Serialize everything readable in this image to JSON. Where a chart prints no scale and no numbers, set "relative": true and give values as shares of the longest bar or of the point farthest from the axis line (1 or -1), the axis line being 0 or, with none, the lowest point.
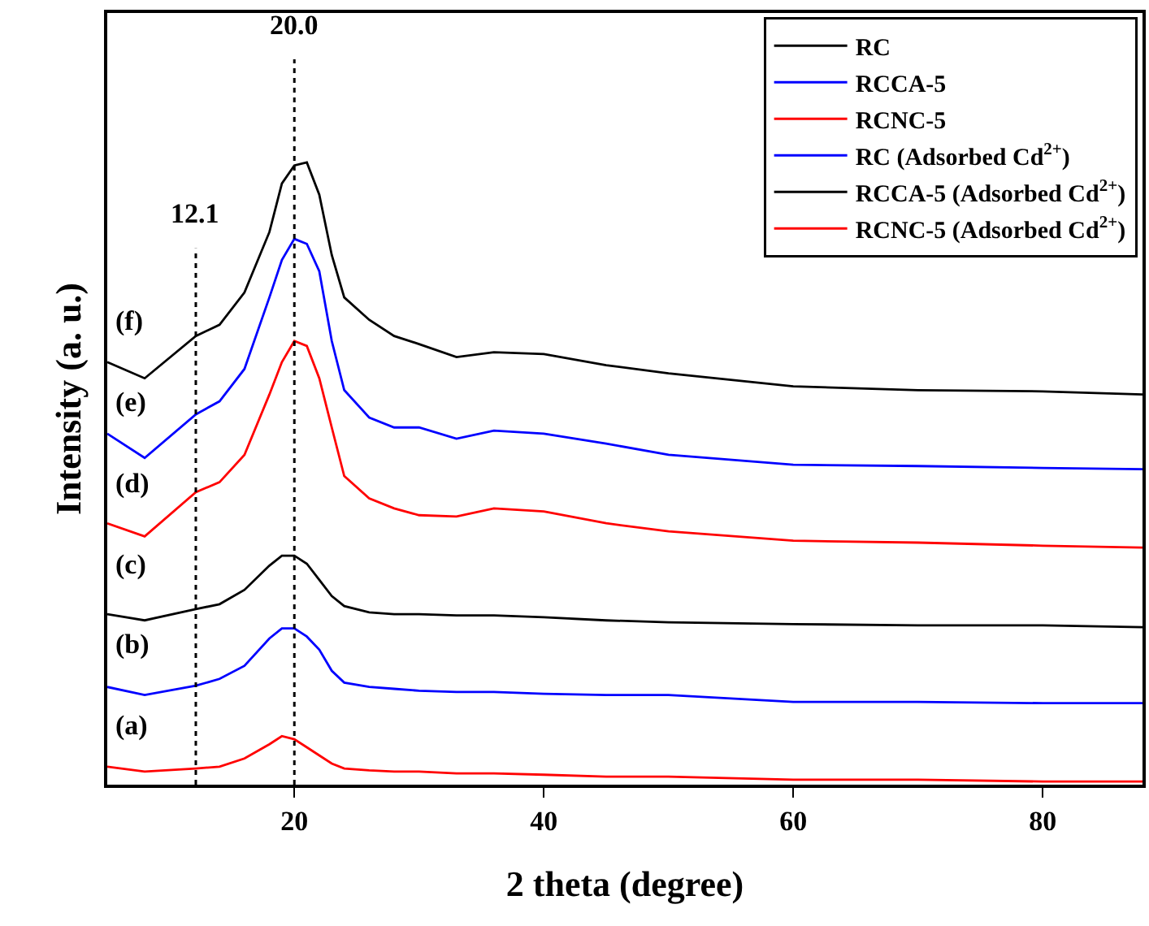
{
  "chart_data": {
    "type": "line",
    "relative": true,
    "xlabel": "2 theta (degree)",
    "ylabel": "Intensity (a. u.)",
    "x": [
      5,
      8,
      12.1,
      14,
      16,
      18,
      19,
      20,
      21,
      22,
      23,
      24,
      26,
      28,
      30,
      33,
      36,
      40,
      45,
      50,
      60,
      70,
      80,
      88
    ],
    "xlim": [
      5,
      88
    ],
    "xticks": [
      20,
      40,
      60,
      80
    ],
    "series": [
      {
        "name": "RC",
        "color": "#000000",
        "values": [
          0.274,
          0.264,
          0.282,
          0.29,
          0.313,
          0.352,
          0.368,
          0.368,
          0.355,
          0.329,
          0.303,
          0.287,
          0.277,
          0.274,
          0.274,
          0.272,
          0.272,
          0.269,
          0.264,
          0.261,
          0.258,
          0.256,
          0.256,
          0.253
        ]
      },
      {
        "name": "RCCA-5",
        "color": "#0000ff",
        "values": [
          0.157,
          0.144,
          0.159,
          0.17,
          0.191,
          0.235,
          0.251,
          0.251,
          0.238,
          0.217,
          0.183,
          0.164,
          0.157,
          0.154,
          0.151,
          0.149,
          0.149,
          0.146,
          0.144,
          0.144,
          0.133,
          0.133,
          0.131,
          0.131
        ]
      },
      {
        "name": "RCNC-5",
        "color": "#ff0000",
        "values": [
          0.029,
          0.021,
          0.026,
          0.029,
          0.042,
          0.065,
          0.078,
          0.073,
          0.06,
          0.047,
          0.034,
          0.026,
          0.023,
          0.021,
          0.021,
          0.018,
          0.018,
          0.016,
          0.013,
          0.013,
          0.008,
          0.008,
          0.005,
          0.005
        ]
      },
      {
        "name": "RC (Adsorbed Cd$^{2+}$)",
        "color": "#0000ff",
        "values": [
          0.564,
          0.525,
          0.595,
          0.616,
          0.668,
          0.783,
          0.843,
          0.877,
          0.869,
          0.825,
          0.713,
          0.634,
          0.59,
          0.574,
          0.574,
          0.556,
          0.569,
          0.564,
          0.548,
          0.53,
          0.514,
          0.512,
          0.509,
          0.507
        ]
      },
      {
        "name": "RCCA-5 (Adsorbed Cd$^{2+}$)",
        "color": "#000000",
        "values": [
          0.679,
          0.653,
          0.721,
          0.739,
          0.791,
          0.888,
          0.966,
          0.995,
          1.0,
          0.948,
          0.851,
          0.783,
          0.747,
          0.721,
          0.708,
          0.687,
          0.695,
          0.692,
          0.674,
          0.661,
          0.64,
          0.634,
          0.632,
          0.627
        ]
      },
      {
        "name": "RCNC-5 (Adsorbed Cd$^{2+}$)",
        "color": "#ff0000",
        "values": [
          0.42,
          0.399,
          0.47,
          0.486,
          0.53,
          0.627,
          0.679,
          0.713,
          0.705,
          0.653,
          0.574,
          0.496,
          0.46,
          0.444,
          0.433,
          0.431,
          0.444,
          0.439,
          0.42,
          0.407,
          0.392,
          0.389,
          0.384,
          0.381
        ]
      }
    ],
    "ref_lines": [
      {
        "axis": "x",
        "value": 12.1,
        "label": "12.1",
        "line_style": "dotted",
        "color": "#000000"
      },
      {
        "axis": "x",
        "value": 20.0,
        "label": "20.0",
        "line_style": "dotted",
        "color": "#000000"
      }
    ],
    "annotations": [
      "(a)",
      "(b)",
      "(c)",
      "(d)",
      "(e)",
      "(f)"
    ],
    "legend": "top right"
  }
}
